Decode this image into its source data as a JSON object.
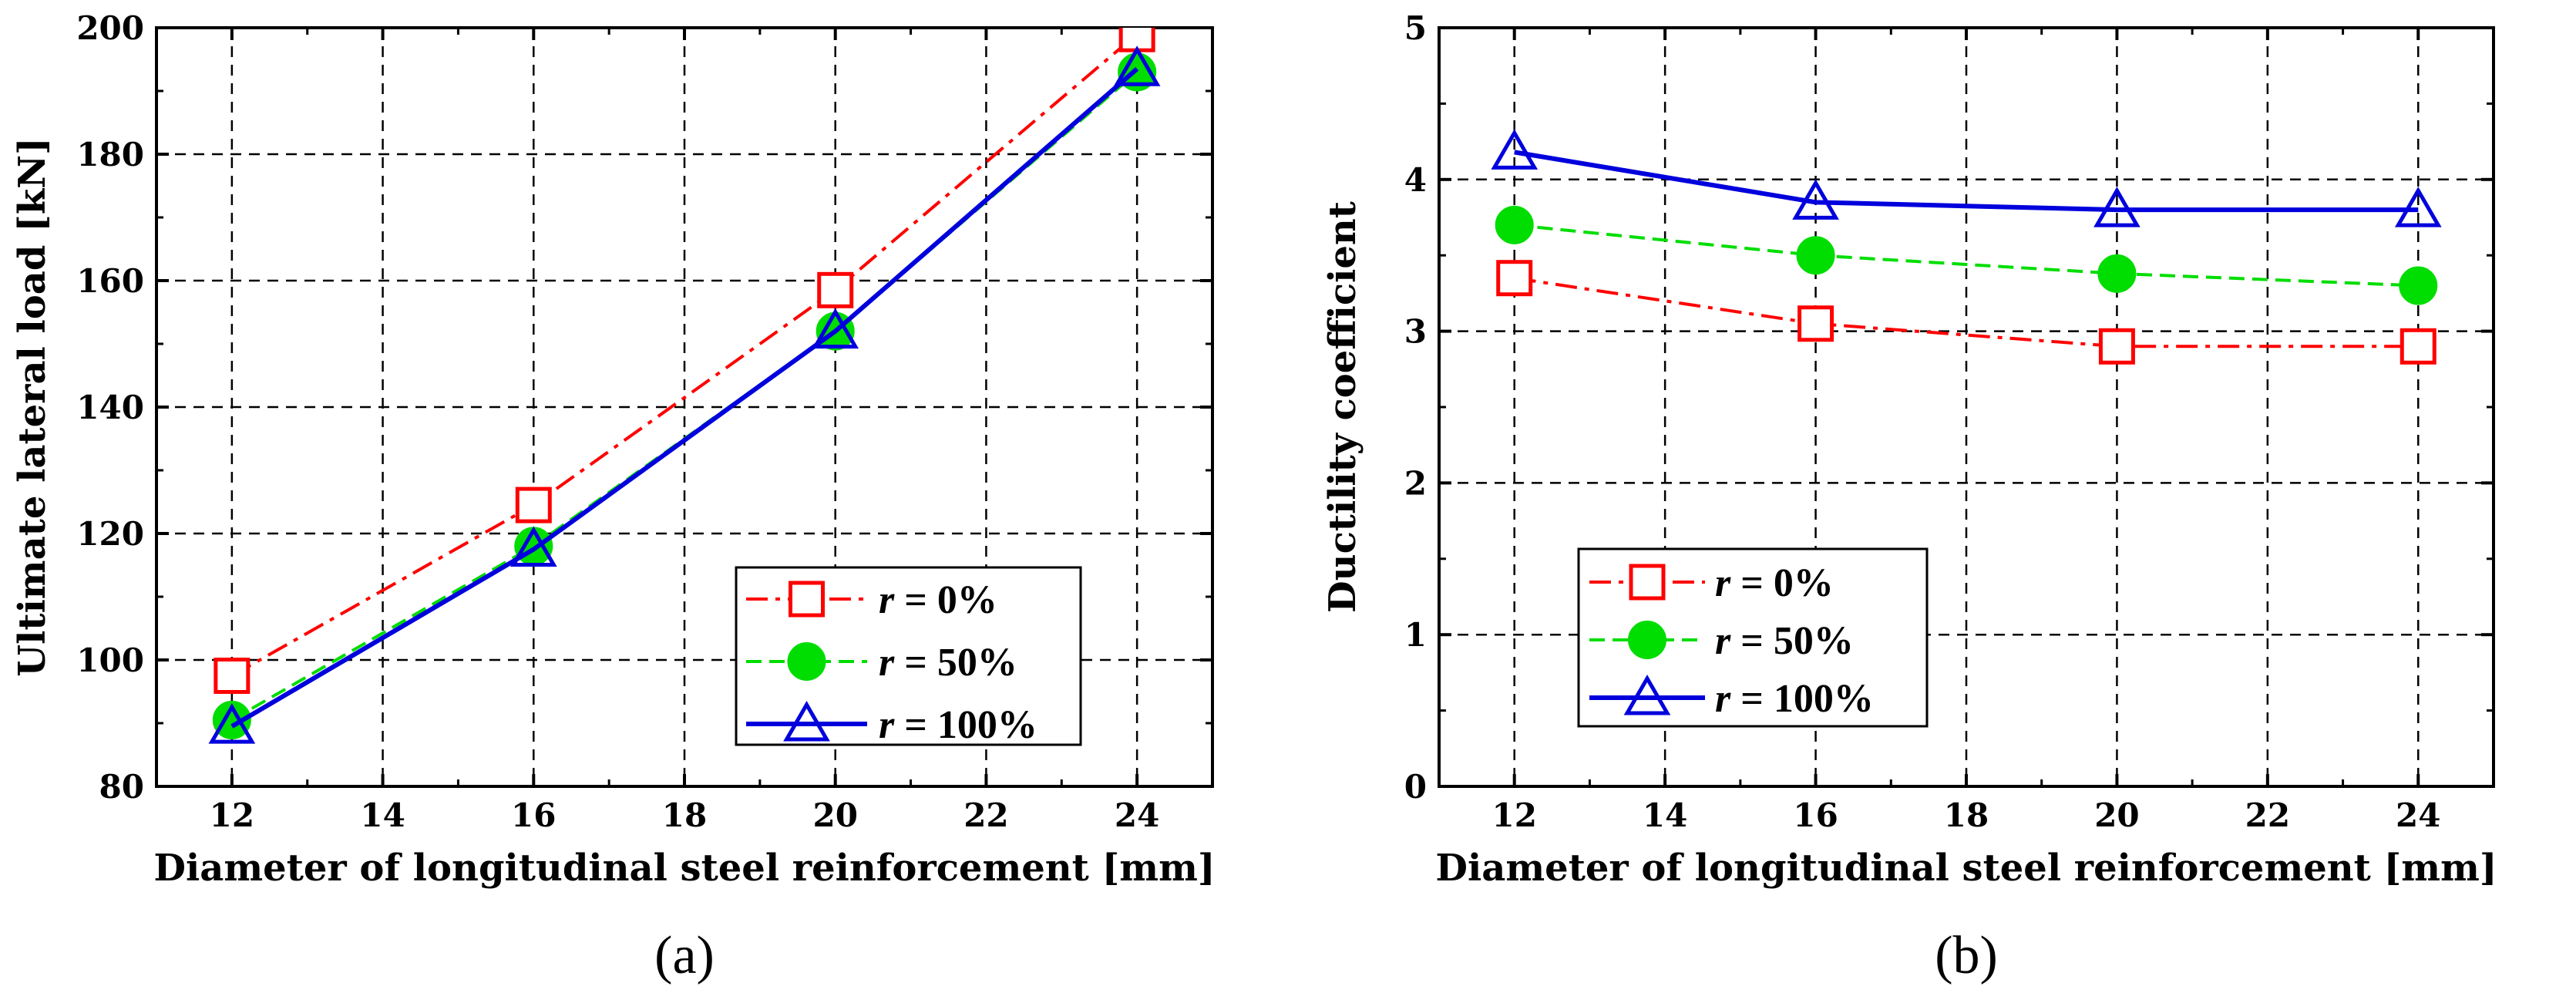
{
  "chart_data": [
    {
      "type": "line",
      "panel_label": "(a)",
      "title": "",
      "xlabel": "Diameter of longitudinal steel reinforcement [mm]",
      "ylabel": "Ultimate lateral load [kN]",
      "xlim": [
        11,
        25
      ],
      "ylim": [
        80,
        200
      ],
      "xticks": [
        12,
        14,
        16,
        18,
        20,
        22,
        24
      ],
      "yticks": [
        80,
        100,
        120,
        140,
        160,
        180,
        200
      ],
      "grid": true,
      "legend_position": "lower-right",
      "x": [
        12,
        16,
        20,
        24
      ],
      "series": [
        {
          "name": "r = 0%",
          "var": "r",
          "label_rest": " = 0%",
          "color": "#ff0000",
          "marker": "square",
          "dash": "28,10,6,10",
          "values": [
            97.5,
            124.5,
            158.5,
            199
          ]
        },
        {
          "name": "r = 50%",
          "var": "r",
          "label_rest": " = 50%",
          "color": "#00dd00",
          "marker": "circle",
          "dash": "20,10",
          "values": [
            90.5,
            118,
            152,
            193
          ]
        },
        {
          "name": "r = 100%",
          "var": "r",
          "label_rest": " = 100%",
          "color": "#0000dd",
          "marker": "triangle",
          "dash": "",
          "values": [
            89.5,
            117.5,
            152,
            193.5
          ]
        }
      ]
    },
    {
      "type": "line",
      "panel_label": "(b)",
      "title": "",
      "xlabel": "Diameter of longitudinal steel reinforcement [mm]",
      "ylabel": "Ductility coefficient",
      "xlim": [
        11,
        25
      ],
      "ylim": [
        0,
        5
      ],
      "xticks": [
        12,
        14,
        16,
        18,
        20,
        22,
        24
      ],
      "yticks": [
        0,
        1,
        2,
        3,
        4,
        5
      ],
      "grid": true,
      "legend_position": "lower-left",
      "x": [
        12,
        16,
        20,
        24
      ],
      "series": [
        {
          "name": "r = 0%",
          "var": "r",
          "label_rest": " = 0%",
          "color": "#ff0000",
          "marker": "square",
          "dash": "28,10,6,10",
          "values": [
            3.35,
            3.05,
            2.9,
            2.9
          ]
        },
        {
          "name": "r = 50%",
          "var": "r",
          "label_rest": " = 50%",
          "color": "#00dd00",
          "marker": "circle",
          "dash": "20,10",
          "values": [
            3.7,
            3.5,
            3.38,
            3.3
          ]
        },
        {
          "name": "r = 100%",
          "var": "r",
          "label_rest": " = 100%",
          "color": "#0000dd",
          "marker": "triangle",
          "dash": "",
          "values": [
            4.18,
            3.85,
            3.8,
            3.8
          ]
        }
      ]
    }
  ]
}
